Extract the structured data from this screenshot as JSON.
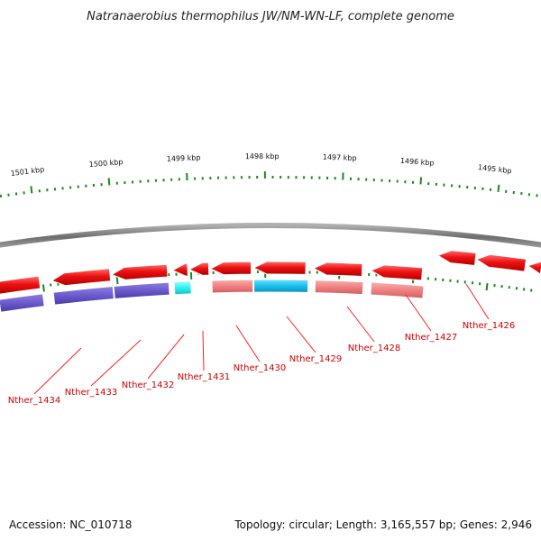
{
  "title": "Natranaerobius thermophilus JW/NM-WN-LF, complete genome",
  "footer": {
    "accession": "Accession: NC_010718",
    "summary": "Topology: circular; Length: 3,165,557 bp; Genes: 2,946"
  },
  "ruler_ticks": [
    "1501 kbp",
    "1500 kbp",
    "1499 kbp",
    "1498 kbp",
    "1497 kbp",
    "1496 kbp",
    "1495 kbp"
  ],
  "gene_labels": [
    "Nther_1434",
    "Nther_1433",
    "Nther_1432",
    "Nther_1431",
    "Nther_1430",
    "Nther_1429",
    "Nther_1428",
    "Nther_1427",
    "Nther_1426"
  ],
  "colors": {
    "backbone": "#7a7a7a",
    "forward_cds": "#ee1111",
    "reverse_cds": "#ee1111",
    "cog_purple": "#6a5acd",
    "cog_pink": "#f08080",
    "cog_cyan": "#19c0e8",
    "cog_cyan_light": "#2ef0f0",
    "ruler": "#1a8a1a",
    "label": "#cc0000"
  }
}
